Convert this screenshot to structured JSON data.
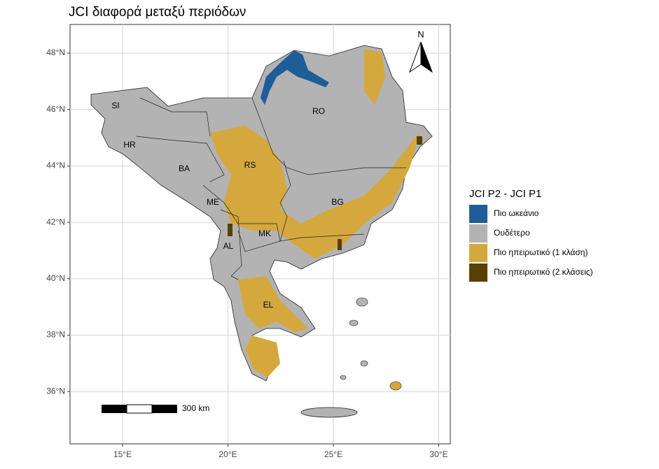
{
  "title": "JCI διαφορά μεταξύ περιόδων",
  "axes": {
    "x_ticks": [
      {
        "value": 15,
        "label": "15°E"
      },
      {
        "value": 20,
        "label": "20°E"
      },
      {
        "value": 25,
        "label": "25°E"
      },
      {
        "value": 30,
        "label": "30°E"
      }
    ],
    "y_ticks": [
      {
        "value": 48,
        "label": "48°N"
      },
      {
        "value": 46,
        "label": "46°N"
      },
      {
        "value": 44,
        "label": "44°N"
      },
      {
        "value": 42,
        "label": "42°N"
      },
      {
        "value": 40,
        "label": "40°N"
      },
      {
        "value": 38,
        "label": "38°N"
      },
      {
        "value": 36,
        "label": "36°N"
      }
    ]
  },
  "countries": [
    "SI",
    "HR",
    "BA",
    "RS",
    "RO",
    "ME",
    "BG",
    "AL",
    "MK",
    "EL"
  ],
  "legend": {
    "title": "JCI P2 - JCI P1",
    "items": [
      {
        "label": "Πιο ωκεάνιο",
        "color": "#1f5d99"
      },
      {
        "label": "Ουδέτερο",
        "color": "#b3b3b3"
      },
      {
        "label": "Πιο ηπειρωτικό (1 κλάση)",
        "color": "#d4a83c"
      },
      {
        "label": "Πιο ηπειρωτικό (2 κλάσεις)",
        "color": "#574000"
      }
    ]
  },
  "scale_bar": "300 km",
  "north": "N"
}
